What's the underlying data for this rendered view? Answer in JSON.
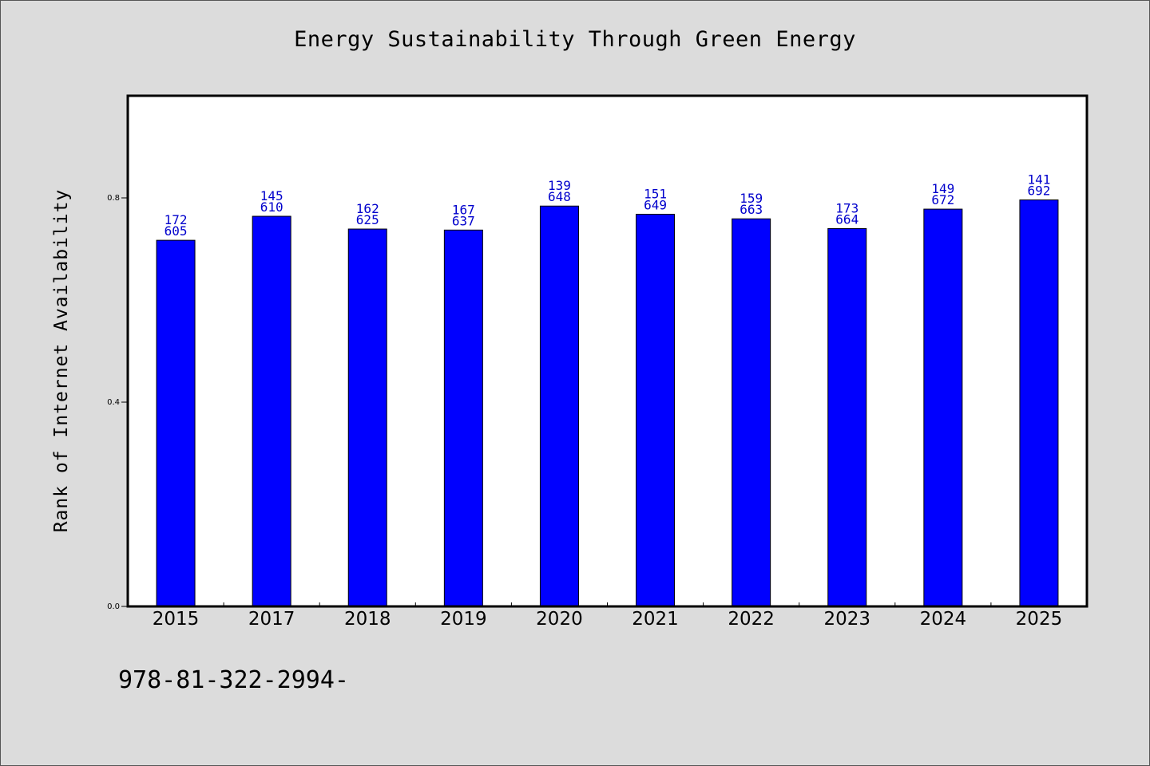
{
  "chart_data": {
    "type": "bar",
    "title": "Energy Sustainability Through Green Energy",
    "xlabel": "",
    "ylabel": "Rank of Internet Availability",
    "categories": [
      "2015",
      "2017",
      "2018",
      "2019",
      "2020",
      "2021",
      "2022",
      "2023",
      "2024",
      "2025"
    ],
    "values": [
      0.717,
      0.764,
      0.739,
      0.737,
      0.784,
      0.768,
      0.759,
      0.74,
      0.778,
      0.796
    ],
    "bar_labels_top": [
      "172",
      "145",
      "162",
      "167",
      "139",
      "151",
      "159",
      "173",
      "149",
      "141"
    ],
    "bar_labels_bottom": [
      "605",
      "610",
      "625",
      "637",
      "648",
      "649",
      "663",
      "664",
      "672",
      "692"
    ],
    "y_ticks": [
      "0.0",
      "0.4",
      "0.8"
    ],
    "ylim": [
      0,
      1.0
    ],
    "grid": false,
    "legend": "none",
    "bar_color": "#0000ff",
    "label_color": "#0000cc",
    "background": "#dcdcdc",
    "plot_background": "#ffffff"
  },
  "footer": {
    "id_text": "978-81-322-2994-"
  }
}
